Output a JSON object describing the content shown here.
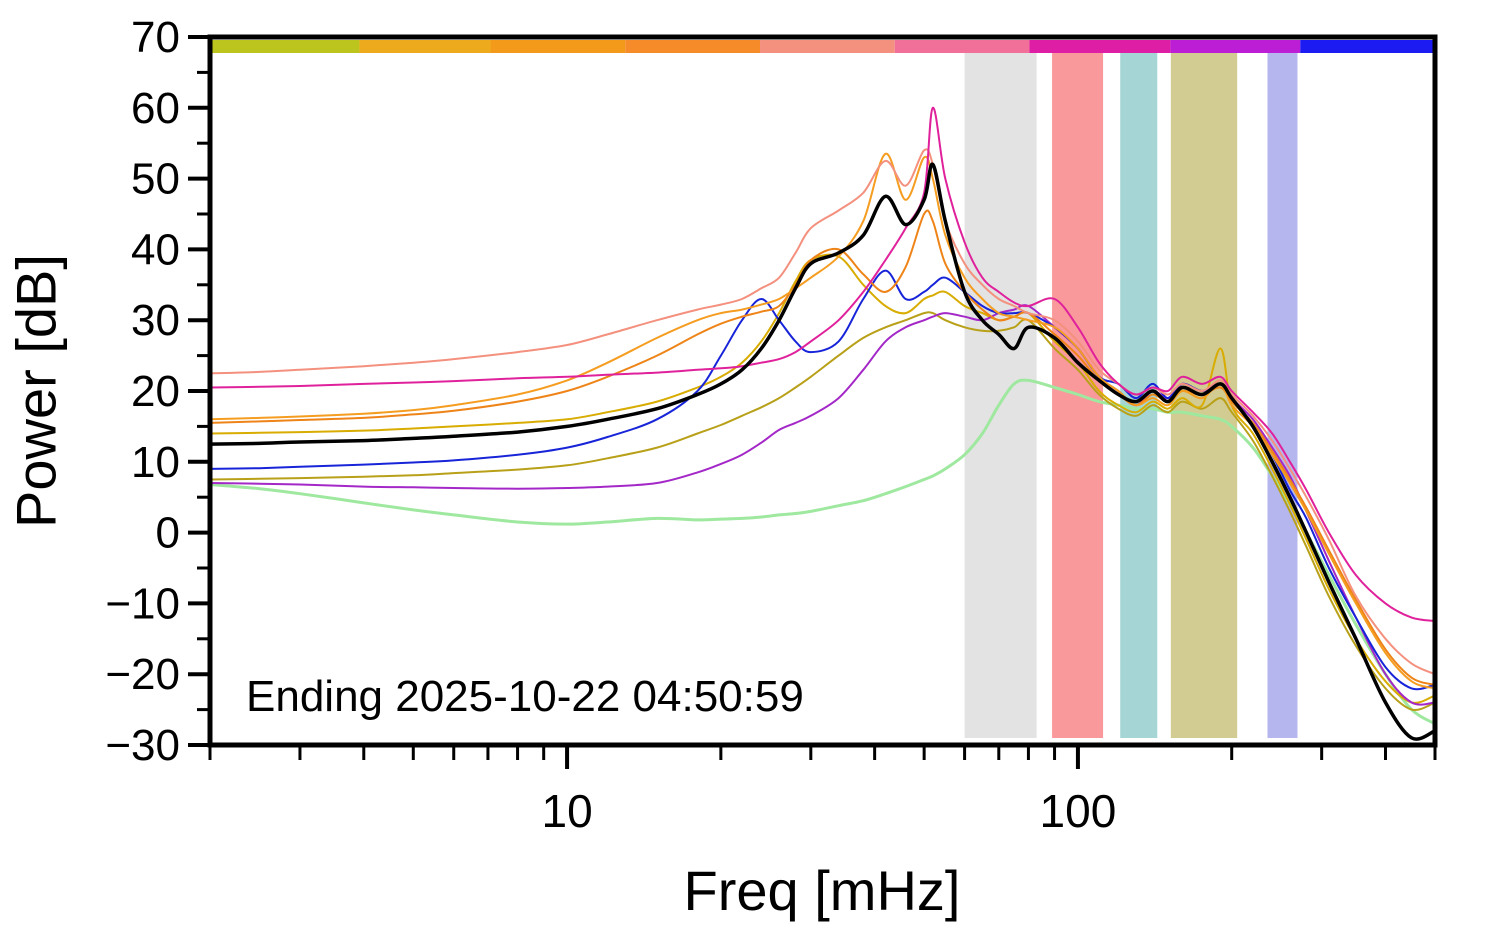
{
  "figure": {
    "background": "#ffffff",
    "frame_color": "#000000"
  },
  "chart_data": {
    "type": "line",
    "title": "",
    "xlabel": "Freq [mHz]",
    "ylabel": "Power [dB]",
    "annotation": "Ending 2025-10-22 04:50:59",
    "x_scale": "log",
    "xlim": [
      2,
      500
    ],
    "ylim": [
      -30,
      70
    ],
    "grid": false,
    "legend": "none",
    "y_ticks": [
      {
        "value": 70,
        "label": "70"
      },
      {
        "value": 60,
        "label": "60"
      },
      {
        "value": 50,
        "label": "50"
      },
      {
        "value": 40,
        "label": "40"
      },
      {
        "value": 30,
        "label": "30"
      },
      {
        "value": 20,
        "label": "20"
      },
      {
        "value": 10,
        "label": "10"
      },
      {
        "value": 0,
        "label": "0"
      },
      {
        "value": -10,
        "label": "−10"
      },
      {
        "value": -20,
        "label": "−20"
      },
      {
        "value": -30,
        "label": "−30"
      }
    ],
    "y_minor_ticks": [
      65,
      55,
      45,
      35,
      25,
      15,
      5,
      -5,
      -15,
      -25
    ],
    "x_major_ticks": [
      {
        "value": 10,
        "label": "10"
      },
      {
        "value": 100,
        "label": "100"
      }
    ],
    "x_minor_ticks": [
      2,
      3,
      4,
      5,
      6,
      7,
      8,
      9,
      20,
      30,
      40,
      50,
      60,
      70,
      80,
      90,
      200,
      300,
      400,
      500
    ],
    "shaded_bands": [
      {
        "f0": 60,
        "f1": 83,
        "color": "#e3e3e3"
      },
      {
        "f0": 89,
        "f1": 112,
        "color": "#f9999b"
      },
      {
        "f0": 121,
        "f1": 143,
        "color": "#a5d5d5"
      },
      {
        "f0": 152,
        "f1": 205,
        "color": "#d2cc92"
      },
      {
        "f0": 235,
        "f1": 269,
        "color": "#b6b6ee"
      }
    ],
    "top_color_bar": [
      {
        "start": 0.0,
        "end": 0.122,
        "color": "#bcc41e"
      },
      {
        "start": 0.122,
        "end": 0.229,
        "color": "#edaa1c"
      },
      {
        "start": 0.229,
        "end": 0.339,
        "color": "#f49a1a"
      },
      {
        "start": 0.339,
        "end": 0.449,
        "color": "#f68b2a"
      },
      {
        "start": 0.449,
        "end": 0.559,
        "color": "#f4907e"
      },
      {
        "start": 0.559,
        "end": 0.669,
        "color": "#f0709a"
      },
      {
        "start": 0.669,
        "end": 0.784,
        "color": "#df1ea6"
      },
      {
        "start": 0.784,
        "end": 0.89,
        "color": "#bb1ed4"
      },
      {
        "start": 0.89,
        "end": 1.0,
        "color": "#1c1cf2"
      }
    ],
    "x": [
      2,
      2.5,
      3,
      4,
      5,
      6,
      8,
      10,
      12,
      15,
      18,
      20,
      22,
      24,
      26,
      28,
      30,
      34,
      38,
      42,
      46,
      50,
      52,
      55,
      60,
      65,
      70,
      75,
      80,
      90,
      100,
      110,
      120,
      130,
      140,
      150,
      160,
      175,
      190,
      200,
      220,
      240,
      260,
      280,
      310,
      350,
      400,
      450,
      500
    ],
    "series": [
      {
        "name": "pale-green",
        "color": "#9fe89f",
        "width": 3,
        "y": [
          6.8,
          6.2,
          5.5,
          4.2,
          3.2,
          2.5,
          1.5,
          1.2,
          1.5,
          2.0,
          1.8,
          1.9,
          2.0,
          2.2,
          2.5,
          2.7,
          3.0,
          3.8,
          4.5,
          5.5,
          6.5,
          7.5,
          8.0,
          9.0,
          11.0,
          14.0,
          18.0,
          21.0,
          21.5,
          20.5,
          19.5,
          18.5,
          18.0,
          17.5,
          17.5,
          17.0,
          17.0,
          16.5,
          16.0,
          15.0,
          12.0,
          8.0,
          4.0,
          0.0,
          -6.0,
          -13.0,
          -20.0,
          -25.0,
          -27.0
        ]
      },
      {
        "name": "olive",
        "color": "#b8a018",
        "width": 2,
        "y": [
          7.5,
          7.6,
          7.7,
          7.9,
          8.1,
          8.4,
          8.9,
          9.5,
          10.5,
          12.0,
          14.0,
          15.2,
          16.5,
          17.7,
          19.0,
          20.5,
          22.0,
          25.0,
          27.5,
          29.0,
          30.0,
          31.0,
          31.0,
          30.0,
          29.0,
          28.5,
          28.5,
          29.0,
          30.0,
          26.0,
          23.0,
          19.5,
          17.5,
          16.5,
          18.0,
          17.0,
          18.5,
          17.5,
          19.0,
          17.0,
          13.0,
          8.0,
          3.0,
          -2.0,
          -9.0,
          -16.0,
          -22.0,
          -25.0,
          -24.0
        ]
      },
      {
        "name": "goldenrod",
        "color": "#d8ac00",
        "width": 2,
        "y": [
          14.0,
          14.1,
          14.2,
          14.4,
          14.7,
          15.0,
          15.5,
          16.0,
          17.0,
          18.5,
          20.5,
          22.0,
          24.0,
          27.0,
          31.0,
          35.5,
          38.5,
          39.0,
          35.0,
          32.0,
          31.0,
          33.0,
          33.5,
          34.0,
          32.0,
          31.0,
          30.0,
          30.5,
          31.0,
          27.0,
          24.0,
          20.0,
          18.0,
          17.0,
          18.5,
          17.5,
          19.0,
          18.0,
          26.0,
          18.0,
          14.0,
          9.0,
          4.0,
          -1.0,
          -8.0,
          -15.0,
          -21.0,
          -24.0,
          -23.0
        ]
      },
      {
        "name": "purple",
        "color": "#a428c8",
        "width": 2,
        "y": [
          7.0,
          6.9,
          6.8,
          6.5,
          6.4,
          6.3,
          6.2,
          6.3,
          6.5,
          7.0,
          8.5,
          9.7,
          11.0,
          12.7,
          14.5,
          15.5,
          16.5,
          19.0,
          23.0,
          27.0,
          29.0,
          30.0,
          30.5,
          31.0,
          30.5,
          30.0,
          31.0,
          31.5,
          32.0,
          29.0,
          26.0,
          22.0,
          20.0,
          18.0,
          20.0,
          19.0,
          21.0,
          20.0,
          21.0,
          19.0,
          16.0,
          12.0,
          8.0,
          3.0,
          -4.0,
          -12.0,
          -20.0,
          -24.0,
          -24.0
        ]
      },
      {
        "name": "blue",
        "color": "#1724d8",
        "width": 2,
        "y": [
          9.0,
          9.1,
          9.3,
          9.6,
          9.9,
          10.2,
          11.0,
          12.0,
          13.5,
          16.0,
          20.0,
          25.0,
          30.0,
          33.0,
          30.0,
          27.0,
          25.5,
          27.0,
          33.0,
          37.0,
          33.0,
          34.0,
          35.0,
          36.0,
          34.0,
          32.0,
          31.0,
          31.0,
          31.0,
          29.0,
          26.0,
          22.0,
          21.0,
          19.0,
          21.0,
          19.0,
          21.0,
          20.0,
          21.0,
          19.0,
          15.0,
          11.0,
          6.0,
          2.0,
          -5.0,
          -12.0,
          -19.0,
          -22.0,
          -21.5
        ]
      },
      {
        "name": "dark-orange",
        "color": "#ee8418",
        "width": 2,
        "y": [
          15.5,
          15.7,
          15.9,
          16.2,
          16.7,
          17.2,
          18.5,
          20.0,
          22.0,
          25.0,
          28.0,
          29.5,
          30.5,
          31.2,
          32.0,
          35.0,
          38.5,
          40.0,
          36.5,
          34.0,
          37.5,
          45.0,
          44.0,
          38.0,
          34.0,
          31.5,
          30.0,
          30.5,
          31.0,
          28.0,
          25.0,
          21.5,
          19.5,
          18.0,
          19.5,
          18.5,
          20.0,
          19.5,
          20.5,
          18.5,
          15.5,
          11.5,
          7.5,
          3.5,
          -2.5,
          -9.5,
          -16.5,
          -20.5,
          -21.5
        ]
      },
      {
        "name": "orange",
        "color": "#f59d20",
        "width": 2,
        "y": [
          16.0,
          16.2,
          16.4,
          16.8,
          17.3,
          18.0,
          19.5,
          21.5,
          24.0,
          27.5,
          30.0,
          31.0,
          31.5,
          32.2,
          33.0,
          34.5,
          36.0,
          39.0,
          44.0,
          53.5,
          47.0,
          53.0,
          50.0,
          42.0,
          36.0,
          33.0,
          31.0,
          30.5,
          30.0,
          29.0,
          26.0,
          22.0,
          20.0,
          18.0,
          19.0,
          18.0,
          20.0,
          19.0,
          21.0,
          18.0,
          15.0,
          11.0,
          7.0,
          3.0,
          -3.0,
          -10.0,
          -17.0,
          -21.0,
          -22.0
        ]
      },
      {
        "name": "salmon",
        "color": "#f4907e",
        "width": 2,
        "y": [
          22.5,
          22.7,
          23.0,
          23.5,
          24.0,
          24.5,
          25.5,
          26.5,
          28.0,
          30.0,
          31.5,
          32.2,
          33.0,
          34.5,
          36.0,
          39.5,
          43.0,
          45.5,
          48.0,
          52.5,
          49.0,
          54.0,
          52.0,
          44.0,
          38.0,
          35.0,
          33.0,
          32.0,
          31.0,
          30.0,
          27.0,
          23.0,
          21.0,
          19.5,
          20.5,
          19.5,
          21.0,
          20.0,
          21.5,
          19.5,
          16.5,
          13.0,
          9.0,
          5.0,
          -1.0,
          -9.0,
          -15.0,
          -18.5,
          -20.0
        ]
      },
      {
        "name": "magenta",
        "color": "#e0219c",
        "width": 2,
        "y": [
          20.5,
          20.6,
          20.7,
          21.0,
          21.2,
          21.4,
          21.8,
          22.0,
          22.3,
          22.6,
          23.0,
          23.2,
          23.5,
          24.0,
          24.5,
          25.5,
          27.0,
          30.0,
          34.0,
          38.5,
          43.0,
          48.0,
          60.0,
          50.0,
          41.0,
          36.0,
          34.0,
          32.5,
          32.0,
          33.0,
          29.0,
          24.0,
          21.0,
          19.5,
          20.5,
          20.0,
          22.0,
          21.0,
          22.0,
          20.0,
          17.0,
          14.0,
          10.0,
          6.0,
          0.0,
          -6.0,
          -10.0,
          -12.0,
          -12.5
        ]
      },
      {
        "name": "black",
        "color": "#000000",
        "width": 3.5,
        "y": [
          12.5,
          12.6,
          12.8,
          13.0,
          13.3,
          13.6,
          14.2,
          15.0,
          16.0,
          17.5,
          19.5,
          21.0,
          23.0,
          26.0,
          30.0,
          34.5,
          38.0,
          39.5,
          42.0,
          47.5,
          43.5,
          47.0,
          52.0,
          44.0,
          34.0,
          30.0,
          28.0,
          26.0,
          29.0,
          27.5,
          24.0,
          21.5,
          19.5,
          18.5,
          20.0,
          18.5,
          20.5,
          19.5,
          21.0,
          19.0,
          15.0,
          10.0,
          5.0,
          0.0,
          -7.0,
          -15.0,
          -24.0,
          -29.0,
          -28.0
        ]
      }
    ]
  }
}
